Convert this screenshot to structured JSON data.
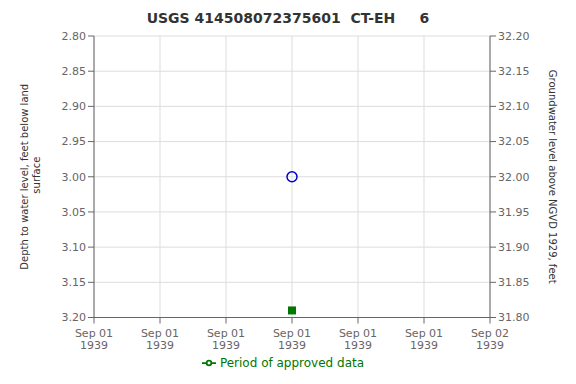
{
  "chart_data": {
    "type": "scatter",
    "title": "USGS 414508072375601  CT-EH     6",
    "ylabel": "Depth to water level, feet below land\n surface",
    "y2label": "Groundwater level above NGVD 1929, feet",
    "categories": [
      "Sep 01\n1939",
      "Sep 01\n1939",
      "Sep 01\n1939",
      "Sep 01\n1939",
      "Sep 01\n1939",
      "Sep 01\n1939",
      "Sep 02\n1939"
    ],
    "series": [
      {
        "type": "scatter",
        "color": "#0000cc",
        "marker": "circle_open",
        "values": [
          null,
          null,
          null,
          3.0,
          null,
          null,
          null
        ]
      },
      {
        "type": "scatter",
        "color": "#007700",
        "marker": "square",
        "values": [
          null,
          null,
          null,
          3.19,
          null,
          null,
          null
        ]
      },
      {
        "name": "Period of approved data",
        "type": "line",
        "color": "#007700",
        "values": [
          null,
          null,
          null,
          null,
          null,
          null,
          null
        ]
      }
    ],
    "ylim": [
      3.2,
      2.8
    ],
    "yticks": [
      {
        "value": 2.8,
        "label": "2.80"
      },
      2.85,
      {
        "value": 2.9,
        "label": "2.90"
      },
      2.95,
      {
        "value": 3.0,
        "label": "3.00"
      },
      3.05,
      {
        "value": 3.1,
        "label": "3.10"
      },
      3.15,
      {
        "value": 3.2,
        "label": "3.20"
      }
    ],
    "y2lim": [
      31.8,
      32.2
    ],
    "y2ticks": [
      {
        "value": 31.8,
        "label": "31.80"
      },
      31.85,
      {
        "value": 31.9,
        "label": "31.90"
      },
      31.95,
      {
        "value": 32.0,
        "label": "32.00"
      },
      32.05,
      {
        "value": 32.1,
        "label": "32.10"
      },
      32.15,
      {
        "value": 32.2,
        "label": "32.20"
      }
    ],
    "grid": true,
    "legend": "bottom"
  }
}
